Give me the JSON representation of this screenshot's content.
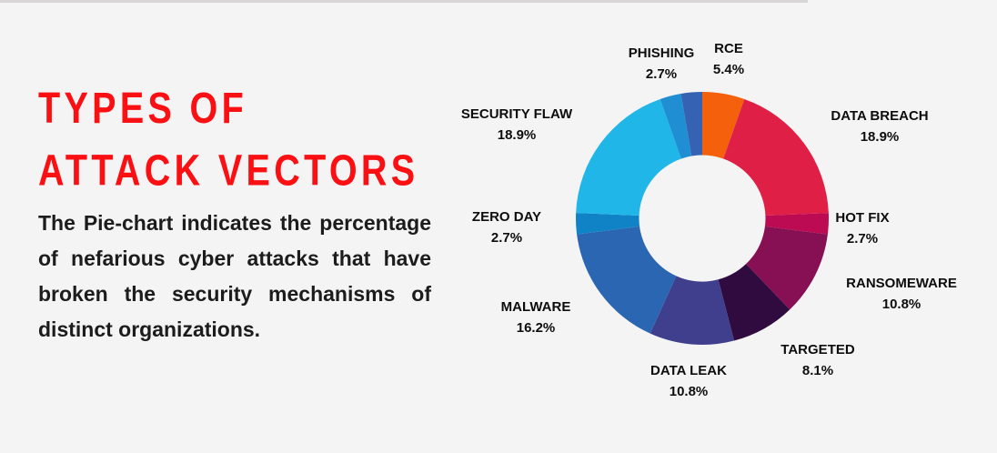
{
  "page": {
    "background": "#f5f4f5",
    "top_strip_color": "#d7d5d6"
  },
  "intro": {
    "title_line1": "TYPES OF",
    "title_line2": "ATTACK VECTORS",
    "title_color": "#fa0f13",
    "description": "The Pie-chart indicates the percentage of nefarious cyber attacks that have broken the security mechanisms of distinct organizations."
  },
  "chart_data": {
    "type": "pie",
    "style": "donut",
    "title": "TYPES OF ATTACK VECTORS",
    "inner_radius_ratio": 0.5,
    "start_angle_deg": 0,
    "direction": "clockwise",
    "legend": "none",
    "slices": [
      {
        "label": "RCE",
        "value": 5.4,
        "pct_label": "5.4%",
        "color": "#f4600c"
      },
      {
        "label": "DATA BREACH",
        "value": 18.9,
        "pct_label": "18.9%",
        "color": "#e01f46"
      },
      {
        "label": "HOT FIX",
        "value": 2.7,
        "pct_label": "2.7%",
        "color": "#bc0a53"
      },
      {
        "label": "RANSOMEWARE",
        "value": 10.8,
        "pct_label": "10.8%",
        "color": "#871055"
      },
      {
        "label": "TARGETED",
        "value": 8.1,
        "pct_label": "8.1%",
        "color": "#300b40"
      },
      {
        "label": "DATA LEAK",
        "value": 10.8,
        "pct_label": "10.8%",
        "color": "#3f3f8e"
      },
      {
        "label": "MALWARE",
        "value": 16.2,
        "pct_label": "16.2%",
        "color": "#2b66b3"
      },
      {
        "label": "ZERO DAY",
        "value": 2.7,
        "pct_label": "2.7%",
        "color": "#1082c6"
      },
      {
        "label": "SECURITY FLAW",
        "value": 18.9,
        "pct_label": "18.9%",
        "color": "#20b6e8"
      },
      {
        "label": "PHISHING",
        "value": 2.7,
        "pct_label": "2.7%",
        "color": "#1f8ed2"
      },
      {
        "label": "",
        "value": 2.7,
        "pct_label": "",
        "color": "#3562b2"
      }
    ]
  }
}
